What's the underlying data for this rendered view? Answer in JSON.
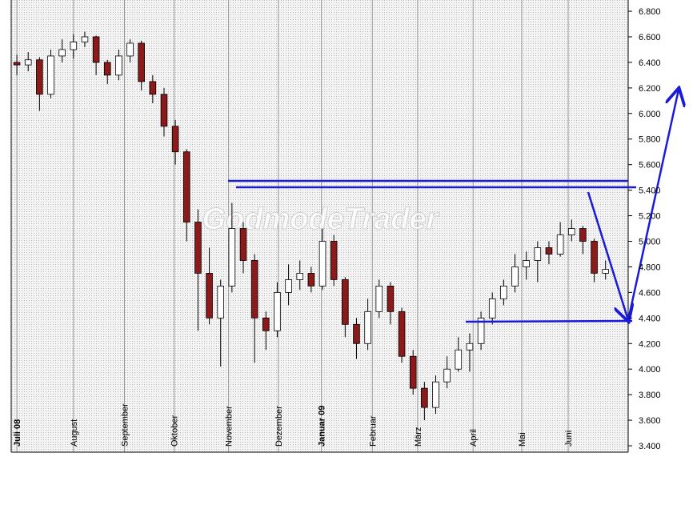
{
  "chart_data": {
    "type": "candlestick",
    "watermark": "GodmodeTrader",
    "open": [
      6400,
      6380,
      6420,
      6150,
      6450,
      6500,
      6560,
      6600,
      6400,
      6300,
      6450,
      6550,
      6250,
      6150,
      5900,
      5700,
      5150,
      4750,
      4400,
      4650,
      5100,
      4850,
      4400,
      4300,
      4600,
      4700,
      4750,
      4650,
      5000,
      4700,
      4350,
      4200,
      4450,
      4650,
      4450,
      4100,
      3850,
      3700,
      3900,
      4000,
      4150,
      4200,
      4400,
      4550,
      4650,
      4800,
      4850,
      4950,
      4900,
      5050,
      5100,
      5000,
      4750
    ],
    "high": [
      6460,
      6480,
      6440,
      6500,
      6580,
      6620,
      6640,
      6610,
      6420,
      6500,
      6580,
      6570,
      6300,
      6200,
      5950,
      5720,
      5250,
      4950,
      4700,
      5300,
      5150,
      4900,
      4450,
      4680,
      4820,
      4850,
      4800,
      5100,
      5050,
      4720,
      4400,
      4550,
      4700,
      4680,
      4480,
      4150,
      3900,
      3950,
      4100,
      4250,
      4280,
      4450,
      4600,
      4700,
      4900,
      4920,
      5000,
      5000,
      5150,
      5170,
      5120,
      5020,
      4850
    ],
    "low": [
      6300,
      6330,
      6020,
      6120,
      6400,
      6430,
      6520,
      6300,
      6230,
      6260,
      6400,
      6180,
      6080,
      5820,
      5600,
      5000,
      4300,
      4350,
      4020,
      4600,
      4750,
      4050,
      4150,
      4250,
      4500,
      4620,
      4600,
      4620,
      4650,
      4250,
      4080,
      4150,
      4400,
      4350,
      4050,
      3800,
      3600,
      3650,
      3850,
      3980,
      3980,
      4150,
      4350,
      4500,
      4600,
      4700,
      4680,
      4820,
      4880,
      5000,
      4900,
      4680,
      4700
    ],
    "close": [
      6380,
      6420,
      6150,
      6450,
      6500,
      6560,
      6600,
      6400,
      6300,
      6450,
      6550,
      6250,
      6150,
      5900,
      5700,
      5150,
      4750,
      4400,
      4650,
      5100,
      4850,
      4400,
      4300,
      4600,
      4700,
      4750,
      4650,
      5000,
      4700,
      4350,
      4200,
      4450,
      4650,
      4450,
      4100,
      3850,
      3700,
      3900,
      4000,
      4150,
      4200,
      4400,
      4550,
      4650,
      4800,
      4850,
      4950,
      4900,
      5050,
      5100,
      5000,
      4750,
      4780
    ],
    "up_color": "#ffffff",
    "down_color": "#8b1a1a",
    "xlim": [
      -0.5,
      54
    ],
    "xticks": [
      {
        "value": 0,
        "label": "Juli 08"
      },
      {
        "value": 5,
        "label": "August"
      },
      {
        "value": 9.5,
        "label": "September"
      },
      {
        "value": 13.9,
        "label": "Oktober"
      },
      {
        "value": 18.7,
        "label": "November"
      },
      {
        "value": 23.1,
        "label": "Dezember"
      },
      {
        "value": 26.9,
        "label": "Januar 09"
      },
      {
        "value": 31.4,
        "label": "Februar"
      },
      {
        "value": 35.4,
        "label": "März"
      },
      {
        "value": 40.3,
        "label": "April"
      },
      {
        "value": 44.6,
        "label": "Mai"
      },
      {
        "value": 48.7,
        "label": "Juni"
      }
    ],
    "ylim": [
      3350,
      6888
    ],
    "yticks": [
      {
        "value": 3400,
        "label": "3.400"
      },
      {
        "value": 3600,
        "label": "3.600"
      },
      {
        "value": 3800,
        "label": "3.800"
      },
      {
        "value": 4000,
        "label": "4.000"
      },
      {
        "value": 4200,
        "label": "4.200"
      },
      {
        "value": 4400,
        "label": "4.400"
      },
      {
        "value": 4600,
        "label": "4.600"
      },
      {
        "value": 4800,
        "label": "4.800"
      },
      {
        "value": 5000,
        "label": "5.000"
      },
      {
        "value": 5200,
        "label": "5.200"
      },
      {
        "value": 5400,
        "label": "5.400"
      },
      {
        "value": 5600,
        "label": "5.600"
      },
      {
        "value": 5800,
        "label": "5.800"
      },
      {
        "value": 6000,
        "label": "6.000"
      },
      {
        "value": 6200,
        "label": "6.200"
      },
      {
        "value": 6400,
        "label": "6.400"
      },
      {
        "value": 6600,
        "label": "6.600"
      },
      {
        "value": 6800,
        "label": "6.800"
      }
    ],
    "grid": true
  }
}
